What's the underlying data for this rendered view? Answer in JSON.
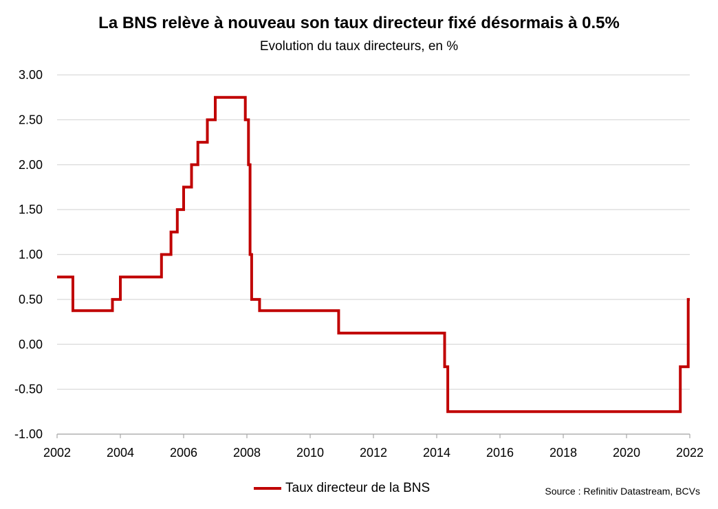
{
  "chart_data": {
    "type": "line",
    "title": "La BNS relève à nouveau son taux directeur fixé désormais à 0.5%",
    "subtitle": "Evolution du taux directeurs, en %",
    "xlabel": "",
    "ylabel": "",
    "xlim": [
      2002,
      2022
    ],
    "ylim": [
      -1.0,
      3.0
    ],
    "x_ticks": [
      "2002",
      "2004",
      "2006",
      "2008",
      "2010",
      "2012",
      "2014",
      "2016",
      "2018",
      "2020",
      "2022"
    ],
    "y_ticks": [
      "-1.00",
      "-0.50",
      "0.00",
      "0.50",
      "1.00",
      "1.50",
      "2.00",
      "2.50",
      "3.00"
    ],
    "grid": "horizontal",
    "legend_position": "bottom-center",
    "series": [
      {
        "name": "Taux directeur de la BNS",
        "color": "#c00000",
        "step": true,
        "points": [
          [
            2002.0,
            0.75
          ],
          [
            2002.5,
            0.375
          ],
          [
            2003.75,
            0.5
          ],
          [
            2004.0,
            0.75
          ],
          [
            2005.3,
            1.0
          ],
          [
            2005.6,
            1.25
          ],
          [
            2005.8,
            1.5
          ],
          [
            2006.0,
            1.75
          ],
          [
            2006.25,
            2.0
          ],
          [
            2006.45,
            2.25
          ],
          [
            2006.75,
            2.5
          ],
          [
            2007.0,
            2.75
          ],
          [
            2007.95,
            2.5
          ],
          [
            2008.05,
            2.0
          ],
          [
            2008.1,
            1.0
          ],
          [
            2008.15,
            0.5
          ],
          [
            2008.4,
            0.375
          ],
          [
            2010.9,
            0.125
          ],
          [
            2014.25,
            -0.25
          ],
          [
            2014.35,
            -0.75
          ],
          [
            2021.7,
            -0.25
          ],
          [
            2021.95,
            0.5
          ],
          [
            2022.0,
            0.5
          ]
        ]
      }
    ]
  },
  "source": "Source : Refinitiv Datastream, BCVs"
}
